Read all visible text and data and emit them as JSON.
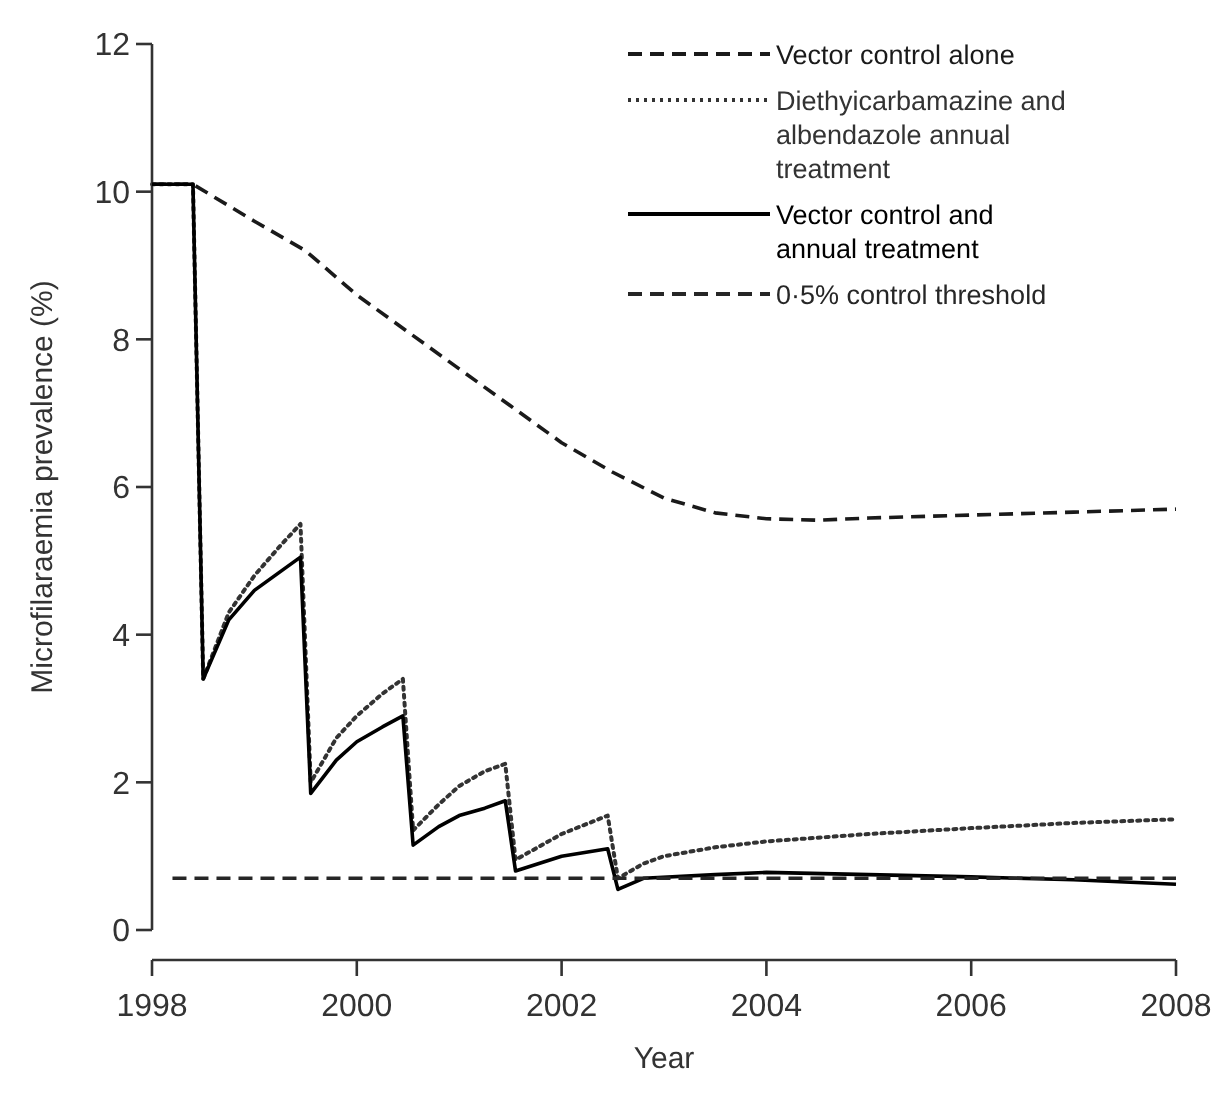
{
  "chart_data": {
    "type": "line",
    "xlabel": "Year",
    "ylabel": "Microfilaraemia prevalence (%)",
    "xlim": [
      1998,
      2008
    ],
    "xticks": [
      1998,
      2000,
      2002,
      2004,
      2006,
      2008
    ],
    "ylim": [
      0,
      12
    ],
    "yticks": [
      0,
      2,
      4,
      6,
      8,
      10,
      12
    ],
    "grid": false,
    "legend": "top right",
    "series": [
      {
        "name": "Vector control alone",
        "color": "#1a1a1a",
        "line_style": "dashed",
        "x": [
          1998,
          1998.4,
          1999,
          1999.5,
          2000,
          2000.5,
          2001,
          2001.5,
          2002,
          2002.5,
          2003,
          2003.5,
          2004,
          2004.5,
          2005,
          2006,
          2007,
          2008
        ],
        "values": [
          10.1,
          10.1,
          9.6,
          9.2,
          8.6,
          8.1,
          7.6,
          7.1,
          6.6,
          6.2,
          5.85,
          5.65,
          5.57,
          5.55,
          5.58,
          5.62,
          5.66,
          5.7
        ]
      },
      {
        "name": "Diethyicarbamazine and albendazole annual treatment",
        "color": "#333333",
        "line_style": "dotted",
        "x": [
          1998,
          1998.4,
          1998.5,
          1998.75,
          1999,
          1999.25,
          1999.45,
          1999.55,
          1999.8,
          2000,
          2000.25,
          2000.45,
          2000.55,
          2000.8,
          2001,
          2001.25,
          2001.45,
          2001.55,
          2002,
          2002.45,
          2002.55,
          2002.8,
          2003,
          2003.5,
          2004,
          2005,
          2006,
          2007,
          2008
        ],
        "values": [
          10.1,
          10.1,
          3.4,
          4.3,
          4.8,
          5.2,
          5.5,
          2.0,
          2.6,
          2.9,
          3.2,
          3.4,
          1.35,
          1.7,
          1.95,
          2.15,
          2.25,
          0.95,
          1.3,
          1.55,
          0.7,
          0.9,
          1.0,
          1.12,
          1.2,
          1.3,
          1.38,
          1.45,
          1.5
        ]
      },
      {
        "name": "Vector control and annual treatment",
        "color": "#000000",
        "line_style": "solid",
        "x": [
          1998,
          1998.4,
          1998.5,
          1998.75,
          1999,
          1999.25,
          1999.45,
          1999.55,
          1999.8,
          2000,
          2000.25,
          2000.45,
          2000.55,
          2000.8,
          2001,
          2001.25,
          2001.45,
          2001.55,
          2002,
          2002.45,
          2002.55,
          2002.8,
          2003.5,
          2004,
          2005,
          2006,
          2007,
          2008
        ],
        "values": [
          10.1,
          10.1,
          3.4,
          4.2,
          4.6,
          4.85,
          5.05,
          1.85,
          2.3,
          2.55,
          2.75,
          2.9,
          1.15,
          1.4,
          1.55,
          1.65,
          1.75,
          0.8,
          1.0,
          1.1,
          0.55,
          0.7,
          0.75,
          0.78,
          0.75,
          0.72,
          0.68,
          0.62
        ]
      },
      {
        "name": "0·5% control threshold",
        "color": "#262626",
        "line_style": "dashed",
        "x": [
          1998.2,
          2008
        ],
        "values": [
          0.7,
          0.7
        ]
      }
    ]
  }
}
